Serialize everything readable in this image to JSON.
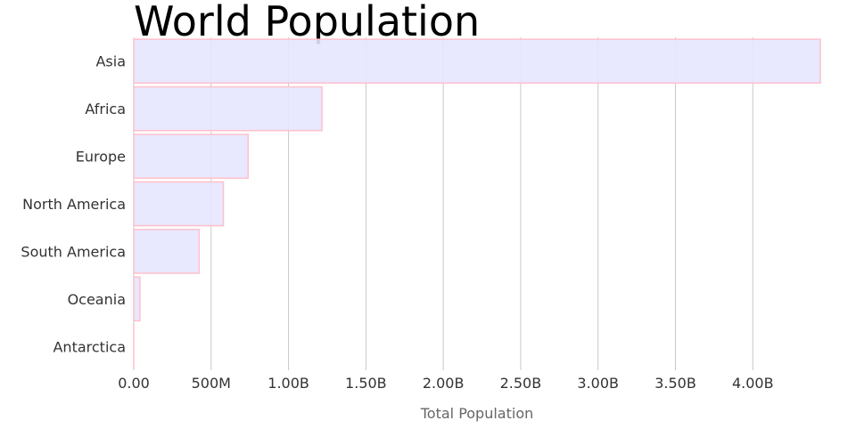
{
  "chart_data": {
    "type": "bar",
    "orientation": "horizontal",
    "title": "World Population",
    "xlabel": "Total Population",
    "ylabel": "",
    "categories": [
      "Asia",
      "Africa",
      "Europe",
      "North America",
      "South America",
      "Oceania",
      "Antarctica"
    ],
    "values": [
      4436224000,
      1216130000,
      738849000,
      579024000,
      422535000,
      39901000,
      1106
    ],
    "xlim": [
      0,
      4436224000
    ],
    "x_ticks": [
      0,
      500000000,
      1000000000,
      1500000000,
      2000000000,
      2500000000,
      3000000000,
      3500000000,
      4000000000
    ],
    "x_tick_labels": [
      "0.00",
      "500M",
      "1.00B",
      "1.50B",
      "2.00B",
      "2.50B",
      "3.00B",
      "3.50B",
      "4.00B"
    ],
    "grid": "vertical",
    "legend": "none",
    "colors": {
      "bar_fill": "#e6e6ff",
      "bar_stroke": "#ffc0cb",
      "grid": "#c8c8c8"
    }
  }
}
